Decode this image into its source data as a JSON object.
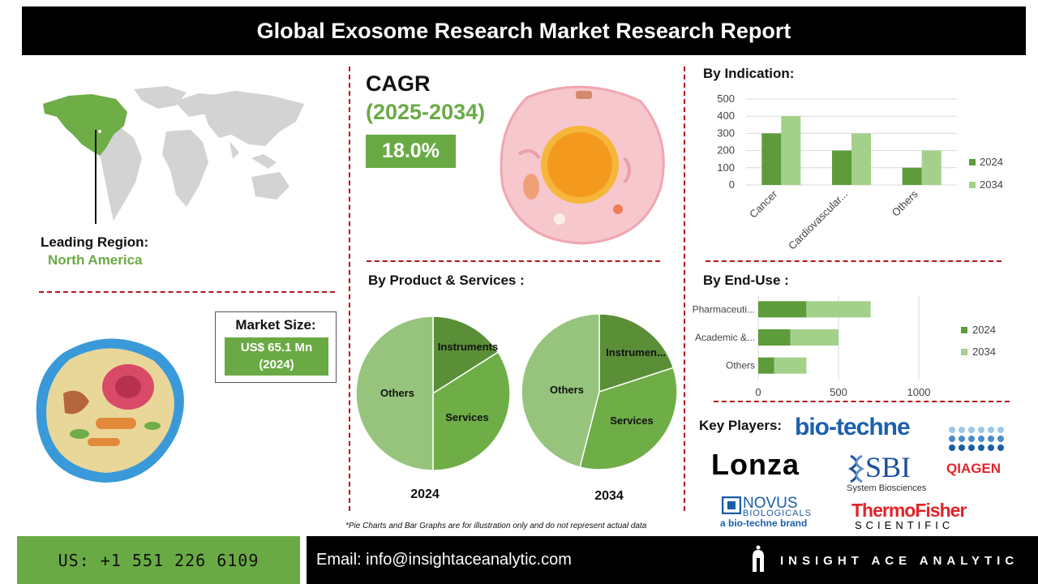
{
  "header": {
    "title": "Global Exosome Research Market Research Report"
  },
  "region": {
    "label": "Leading Region:",
    "value": "North America"
  },
  "market_size": {
    "label": "Market Size:",
    "value_line1": "US$ 65.1 Mn",
    "value_line2": "(2024)"
  },
  "cagr": {
    "label": "CAGR",
    "period": "(2025-2034)",
    "value": "18.0%"
  },
  "indication": {
    "title": "By Indication:",
    "chart_data": {
      "type": "bar",
      "categories": [
        "Cancer",
        "Cardiovascular...",
        "Others"
      ],
      "series": [
        {
          "name": "2024",
          "values": [
            300,
            200,
            100
          ],
          "color": "#5d9b3b"
        },
        {
          "name": "2034",
          "values": [
            400,
            300,
            200
          ],
          "color": "#a3d08a"
        }
      ],
      "ylim": [
        0,
        500
      ],
      "yticks": [
        "0",
        "100",
        "200",
        "300",
        "400",
        "500"
      ],
      "legend": "right",
      "grid": true
    }
  },
  "product": {
    "title": "By Product & Services :",
    "chart_data": [
      {
        "type": "pie",
        "caption": "2024",
        "slices": [
          {
            "name": "Instruments",
            "value": 16,
            "color": "#5a8f38"
          },
          {
            "name": "Services",
            "value": 34,
            "color": "#6fad47"
          },
          {
            "name": "Others",
            "value": 50,
            "color": "#96c47c"
          }
        ]
      },
      {
        "type": "pie",
        "caption": "2034",
        "slices": [
          {
            "name": "Instrumen...",
            "value": 20,
            "color": "#5a8f38"
          },
          {
            "name": "Services",
            "value": 34,
            "color": "#6fad47"
          },
          {
            "name": "Others",
            "value": 46,
            "color": "#96c47c"
          }
        ]
      }
    ]
  },
  "enduse": {
    "title": "By End-Use :",
    "chart_data": {
      "type": "bar",
      "orientation": "horizontal",
      "stacked": true,
      "categories": [
        "Pharmaceuti...",
        "Academic &...",
        "Others"
      ],
      "series": [
        {
          "name": "2024",
          "values": [
            300,
            200,
            100
          ],
          "color": "#5d9b3b"
        },
        {
          "name": "2034",
          "values": [
            400,
            300,
            200
          ],
          "color": "#a3d08a"
        }
      ],
      "xlim": [
        0,
        1000
      ],
      "xticks": [
        "0",
        "500",
        "1000"
      ],
      "legend": "right",
      "grid": true
    }
  },
  "key_players": {
    "title": "Key Players:",
    "names": {
      "biotechne": "bio-techne",
      "lonza": "Lonza",
      "sbi": "SBI",
      "sbi_sub": "System Biosciences",
      "qiagen": "QIAGEN",
      "novus": "NOVUS",
      "novus_sub": "BIOLOGICALS",
      "novus_brand": "a bio-techne brand",
      "thermo": "ThermoFisher",
      "thermo_sub": "SCIENTIFIC"
    }
  },
  "disclaimer": "*Pie Charts and Bar Graphs are for illustration only and do not represent actual data",
  "footer": {
    "phone": "US: +1 551 226 6109",
    "email": "Email: info@insightaceanalytic.com",
    "brand": "INSIGHT ACE ANALYTIC"
  },
  "colors": {
    "accent": "#6aaa45",
    "dash": "#b3151e",
    "dark_green": "#5d9b3b",
    "light_green": "#a3d08a"
  }
}
